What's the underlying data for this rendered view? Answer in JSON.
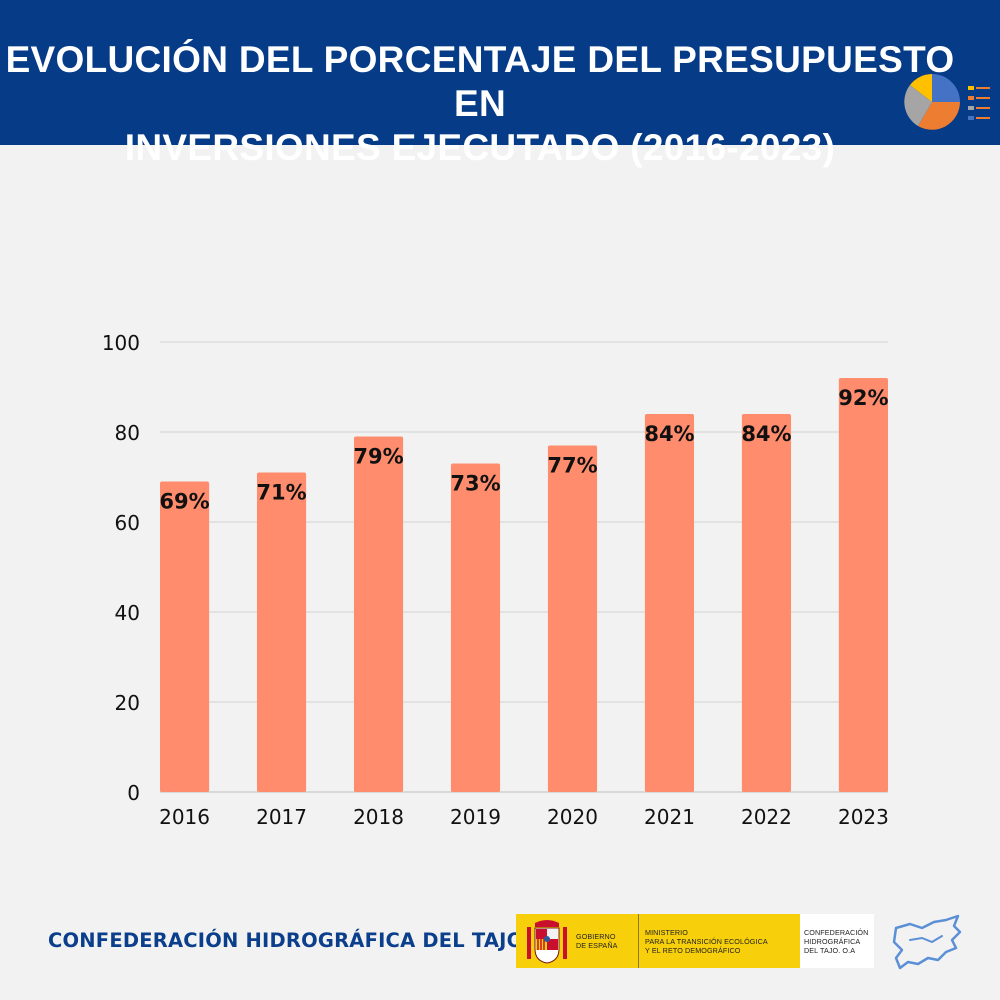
{
  "header": {
    "title_line1": "EVOLUCIÓN DEL PORCENTAJE DEL PRESUPUESTO EN",
    "title_line2": "INVERSIONES EJECUTADO (2016-2023)",
    "background": "#053b87"
  },
  "chart_data": {
    "type": "bar",
    "title": "EVOLUCIÓN DEL PORCENTAJE DEL PRESUPUESTO EN INVERSIONES EJECUTADO (2016-2023)",
    "categories": [
      "2016",
      "2017",
      "2018",
      "2019",
      "2020",
      "2021",
      "2022",
      "2023"
    ],
    "values": [
      69,
      71,
      79,
      73,
      77,
      84,
      84,
      92
    ],
    "data_labels": [
      "69%",
      "71%",
      "79%",
      "73%",
      "77%",
      "84%",
      "84%",
      "92%"
    ],
    "y_ticks": [
      "0",
      "20",
      "40",
      "60",
      "80",
      "100"
    ],
    "ylim": [
      0,
      100
    ],
    "xlabel": "",
    "ylabel": "",
    "grid": true,
    "bar_color": "#ff8d6d"
  },
  "footer": {
    "organization": "CONFEDERACIÓN HIDROGRÁFICA DEL TAJO",
    "gov_line1": "GOBIERNO",
    "gov_line2": "DE ESPAÑA",
    "ministry_line1": "MINISTERIO",
    "ministry_line2": "PARA LA TRANSICIÓN ECOLÓGICA",
    "ministry_line3": "Y EL RETO DEMOGRÁFICO",
    "chtajo_line1": "CONFEDERACIÓN",
    "chtajo_line2": "HIDROGRÁFICA",
    "chtajo_line3": "DEL TAJO. O.A"
  }
}
